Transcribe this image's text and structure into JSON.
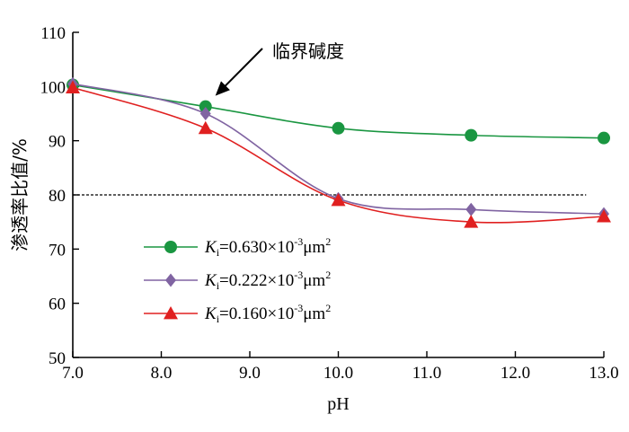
{
  "chart_data": {
    "type": "line",
    "title": "",
    "xlabel": "pH",
    "ylabel": "渗透率比值/%",
    "xlim": [
      7.0,
      13.0
    ],
    "ylim": [
      50,
      110
    ],
    "x_ticks": [
      7.0,
      8.0,
      9.0,
      10.0,
      11.0,
      12.0,
      13.0
    ],
    "x_tick_labels": [
      "7.0",
      "8.0",
      "9.0",
      "10.0",
      "11.0",
      "12.0",
      "13.0"
    ],
    "y_ticks": [
      50,
      60,
      70,
      80,
      90,
      100,
      110
    ],
    "y_tick_labels": [
      "50",
      "60",
      "70",
      "80",
      "90",
      "100",
      "110"
    ],
    "grid": false,
    "legend_position": "bottom-left",
    "series": [
      {
        "name": "Ki=0.630×10-3μm2",
        "legend": {
          "symbol": "K",
          "sub": "i",
          "base": "=0.630×10",
          "sup": "-3",
          "unit": "μm",
          "unit_sup": "2"
        },
        "color": "#1a9641",
        "marker": "circle",
        "x": [
          7.0,
          8.5,
          10.0,
          11.5,
          13.0
        ],
        "y": [
          100.3,
          96.3,
          92.3,
          91.0,
          90.5
        ]
      },
      {
        "name": "Ki=0.222×10-3μm2",
        "legend": {
          "symbol": "K",
          "sub": "i",
          "base": "=0.222×10",
          "sup": "-3",
          "unit": "μm",
          "unit_sup": "2"
        },
        "color": "#8064a2",
        "marker": "diamond",
        "x": [
          7.0,
          8.5,
          10.0,
          11.5,
          13.0
        ],
        "y": [
          100.5,
          95.0,
          79.3,
          77.3,
          76.5
        ]
      },
      {
        "name": "Ki=0.160×10-3μm2",
        "legend": {
          "symbol": "K",
          "sub": "i",
          "base": "=0.160×10",
          "sup": "-3",
          "unit": "μm",
          "unit_sup": "2"
        },
        "color": "#e02020",
        "marker": "triangle",
        "x": [
          7.0,
          8.5,
          10.0,
          11.5,
          13.0
        ],
        "y": [
          99.8,
          92.3,
          79.0,
          75.0,
          76.0
        ]
      }
    ],
    "reference_line": {
      "y": 80,
      "x_start": 7.0,
      "x_end": 12.8,
      "style": "dashed"
    },
    "annotation": {
      "text": "临界碱度",
      "points_to": {
        "x": 8.55,
        "y": 96.3
      }
    }
  }
}
